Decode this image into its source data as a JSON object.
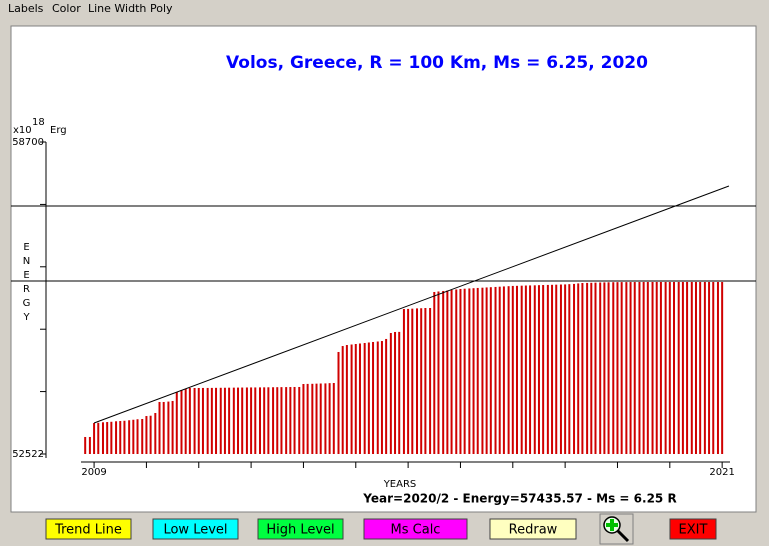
{
  "menu": [
    "Labels",
    "Color",
    "Line Width",
    "Poly"
  ],
  "buttons": [
    {
      "label": "Trend Line",
      "color": "#ffff00"
    },
    {
      "label": "Low Level",
      "color": "#00ffff"
    },
    {
      "label": "High Level",
      "color": "#00ff40"
    },
    {
      "label": "Ms Calc",
      "color": "#ff00ff"
    },
    {
      "label": "Redraw",
      "color": "#ffffc0"
    },
    {
      "label": "EXIT",
      "color": "#ff0000",
      "text_color": "#800000"
    }
  ],
  "chart_data": {
    "type": "bar",
    "title": "Volos, Greece, R = 100 Km, Ms = 6.25, 2020",
    "title_color": "#0000ff",
    "y_unit": {
      "base": "x10",
      "exponent": "18",
      "unit": "Erg"
    },
    "ylabel": "ENERGY",
    "xlabel": "YEARS",
    "annotation": "Year=2020/2 - Energy=57435.57 - Ms = 6.25 R",
    "color": "#d00000",
    "xlim": [
      2008.75,
      2021.15
    ],
    "xticks": [
      2009,
      2021
    ],
    "minor_xticks": [
      2010,
      2011,
      2012,
      2013,
      2014,
      2015,
      2016,
      2017,
      2018,
      2019,
      2020
    ],
    "ylim": [
      52522,
      58700
    ],
    "yticks": [
      52522,
      58700
    ],
    "minor_yticks": [
      53758,
      54993,
      56229,
      57464
    ],
    "high_level": 57433,
    "low_level": 55948,
    "trend_line": {
      "x": [
        2009,
        2021.13
      ],
      "y": [
        53136,
        57829
      ]
    },
    "x": [
      2008.83,
      2008.92,
      2009.0,
      2009.08,
      2009.17,
      2009.25,
      2009.33,
      2009.42,
      2009.5,
      2009.58,
      2009.67,
      2009.75,
      2009.83,
      2009.92,
      2010.0,
      2010.08,
      2010.17,
      2010.25,
      2010.33,
      2010.42,
      2010.5,
      2010.58,
      2010.67,
      2010.75,
      2010.83,
      2010.92,
      2011.0,
      2011.08,
      2011.17,
      2011.25,
      2011.33,
      2011.42,
      2011.5,
      2011.58,
      2011.67,
      2011.75,
      2011.83,
      2011.92,
      2012.0,
      2012.08,
      2012.17,
      2012.25,
      2012.33,
      2012.42,
      2012.5,
      2012.58,
      2012.67,
      2012.75,
      2012.83,
      2012.92,
      2013.0,
      2013.08,
      2013.17,
      2013.25,
      2013.33,
      2013.42,
      2013.5,
      2013.58,
      2013.67,
      2013.75,
      2013.83,
      2013.92,
      2014.0,
      2014.08,
      2014.17,
      2014.25,
      2014.33,
      2014.42,
      2014.5,
      2014.58,
      2014.67,
      2014.75,
      2014.83,
      2014.92,
      2015.0,
      2015.08,
      2015.17,
      2015.25,
      2015.33,
      2015.42,
      2015.5,
      2015.58,
      2015.67,
      2015.75,
      2015.83,
      2015.92,
      2016.0,
      2016.08,
      2016.17,
      2016.25,
      2016.33,
      2016.42,
      2016.5,
      2016.58,
      2016.67,
      2016.75,
      2016.83,
      2016.92,
      2017.0,
      2017.08,
      2017.17,
      2017.25,
      2017.33,
      2017.42,
      2017.5,
      2017.58,
      2017.67,
      2017.75,
      2017.83,
      2017.92,
      2018.0,
      2018.08,
      2018.17,
      2018.25,
      2018.33,
      2018.42,
      2018.5,
      2018.58,
      2018.67,
      2018.75,
      2018.83,
      2018.92,
      2019.0,
      2019.08,
      2019.17,
      2019.25,
      2019.33,
      2019.42,
      2019.5,
      2019.58,
      2019.67,
      2019.75,
      2019.83,
      2019.92,
      2020.0,
      2020.08,
      2020.17,
      2020.25,
      2020.33,
      2020.42,
      2020.5,
      2020.58,
      2020.67,
      2020.75,
      2020.83,
      2020.92,
      2021.0
    ],
    "values": [
      52859,
      52859,
      53136,
      53140,
      53150,
      53155,
      53160,
      53170,
      53175,
      53180,
      53190,
      53200,
      53210,
      53215,
      53274,
      53280,
      53334,
      53552,
      53552,
      53560,
      53572,
      53750,
      53789,
      53809,
      53829,
      53829,
      53829,
      53830,
      53830,
      53831,
      53832,
      53833,
      53834,
      53835,
      53836,
      53837,
      53838,
      53839,
      53840,
      53840,
      53841,
      53842,
      53843,
      53844,
      53845,
      53846,
      53847,
      53848,
      53849,
      53849,
      53908,
      53910,
      53912,
      53915,
      53918,
      53920,
      53925,
      53928,
      54542,
      54660,
      54680,
      54690,
      54700,
      54710,
      54720,
      54730,
      54740,
      54750,
      54759,
      54800,
      54918,
      54938,
      54940,
      55393,
      55395,
      55400,
      55405,
      55408,
      55413,
      55413,
      55730,
      55740,
      55750,
      55760,
      55770,
      55780,
      55790,
      55795,
      55800,
      55805,
      55810,
      55815,
      55820,
      55825,
      55830,
      55835,
      55840,
      55845,
      55850,
      55852,
      55855,
      55858,
      55860,
      55862,
      55865,
      55868,
      55870,
      55872,
      55875,
      55878,
      55880,
      55885,
      55890,
      55900,
      55908,
      55910,
      55912,
      55915,
      55918,
      55920,
      55922,
      55924,
      55925,
      55926,
      55926,
      55927,
      55927,
      55928,
      55928,
      55928,
      55928,
      55928,
      55928,
      55928,
      55928,
      55928,
      55928,
      55928,
      55928,
      55928,
      55928,
      55928,
      55928,
      55928,
      55928,
      55928,
      55928
    ]
  }
}
